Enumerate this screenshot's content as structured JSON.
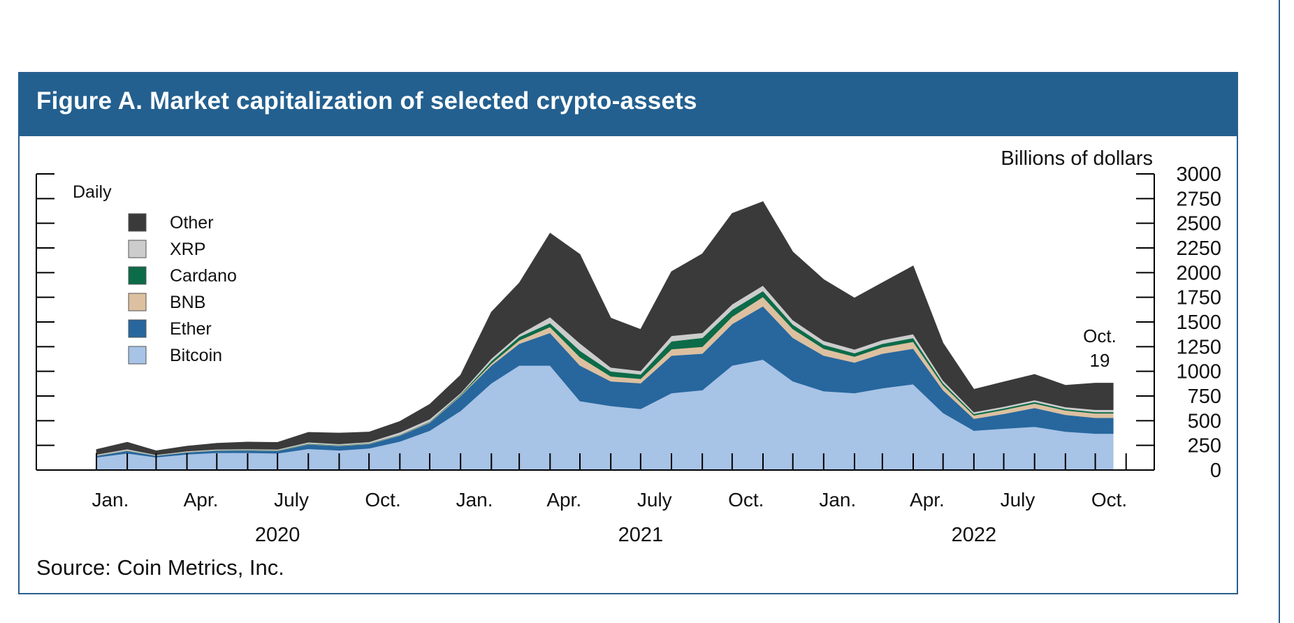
{
  "figure": {
    "title": "Figure A. Market capitalization of selected crypto-assets",
    "source": "Source: Coin Metrics, Inc."
  },
  "colors": {
    "header": "#23608f",
    "Other": "#3a3a3a",
    "XRP": "#cccccc",
    "Cardano": "#0c6b48",
    "BNB": "#dcc0a0",
    "Ether": "#27679e",
    "Bitcoin": "#a7c3e6"
  },
  "chart_data": {
    "type": "area",
    "stacked": true,
    "frequency_label": "Daily",
    "ylabel": "Billions of dollars",
    "ylim": [
      0,
      3000
    ],
    "yticks": [
      0,
      250,
      500,
      750,
      1000,
      1250,
      1500,
      1750,
      2000,
      2250,
      2500,
      2750,
      3000
    ],
    "x_tick_labels": [
      "Jan.",
      "Apr.",
      "July",
      "Oct.",
      "Jan.",
      "Apr.",
      "July",
      "Oct.",
      "Jan.",
      "Apr.",
      "July",
      "Oct."
    ],
    "year_labels": [
      "2020",
      "2021",
      "2022"
    ],
    "end_annotation": [
      "Oct.",
      "19"
    ],
    "legend": [
      "Other",
      "XRP",
      "Cardano",
      "BNB",
      "Ether",
      "Bitcoin"
    ],
    "legend_position": "top-left",
    "x": [
      "2020-01-01",
      "2020-02-01",
      "2020-03-01",
      "2020-04-01",
      "2020-05-01",
      "2020-06-01",
      "2020-07-01",
      "2020-08-01",
      "2020-09-01",
      "2020-10-01",
      "2020-11-01",
      "2020-12-01",
      "2021-01-01",
      "2021-02-01",
      "2021-03-01",
      "2021-04-01",
      "2021-05-01",
      "2021-06-01",
      "2021-07-01",
      "2021-08-01",
      "2021-09-01",
      "2021-10-01",
      "2021-11-01",
      "2021-12-01",
      "2022-01-01",
      "2022-02-01",
      "2022-03-01",
      "2022-04-01",
      "2022-05-01",
      "2022-06-01",
      "2022-07-01",
      "2022-08-01",
      "2022-09-01",
      "2022-10-01",
      "2022-10-19"
    ],
    "series": [
      {
        "name": "Bitcoin",
        "values": [
          130,
          170,
          130,
          160,
          175,
          175,
          170,
          215,
          200,
          220,
          290,
          400,
          600,
          880,
          1060,
          1060,
          700,
          650,
          620,
          780,
          810,
          1060,
          1120,
          900,
          800,
          780,
          830,
          870,
          580,
          400,
          420,
          440,
          390,
          370,
          370
        ]
      },
      {
        "name": "Ether",
        "values": [
          15,
          25,
          15,
          20,
          22,
          25,
          25,
          45,
          45,
          45,
          60,
          80,
          150,
          180,
          220,
          330,
          360,
          250,
          260,
          380,
          370,
          420,
          540,
          440,
          360,
          310,
          350,
          360,
          230,
          120,
          150,
          190,
          170,
          160,
          160
        ]
      },
      {
        "name": "BNB",
        "values": [
          3,
          3,
          2,
          3,
          3,
          3,
          3,
          4,
          5,
          5,
          5,
          6,
          8,
          20,
          35,
          60,
          85,
          50,
          45,
          65,
          70,
          75,
          95,
          90,
          70,
          60,
          65,
          70,
          50,
          35,
          40,
          45,
          45,
          45,
          45
        ]
      },
      {
        "name": "Cardano",
        "values": [
          1,
          2,
          1,
          1,
          2,
          2,
          3,
          4,
          3,
          3,
          3,
          5,
          8,
          25,
          35,
          40,
          65,
          50,
          45,
          80,
          90,
          70,
          60,
          45,
          40,
          35,
          35,
          38,
          22,
          15,
          15,
          16,
          14,
          13,
          13
        ]
      },
      {
        "name": "XRP",
        "values": [
          9,
          12,
          7,
          8,
          9,
          9,
          9,
          14,
          12,
          12,
          25,
          25,
          15,
          25,
          25,
          60,
          75,
          40,
          35,
          55,
          50,
          55,
          55,
          45,
          40,
          38,
          38,
          40,
          25,
          18,
          18,
          18,
          20,
          23,
          23
        ]
      },
      {
        "name": "Other",
        "values": [
          50,
          70,
          40,
          50,
          60,
          70,
          70,
          100,
          110,
          100,
          110,
          150,
          180,
          470,
          520,
          850,
          900,
          500,
          420,
          650,
          800,
          920,
          850,
          690,
          620,
          520,
          580,
          690,
          380,
          230,
          250,
          260,
          220,
          270,
          270
        ]
      }
    ]
  }
}
